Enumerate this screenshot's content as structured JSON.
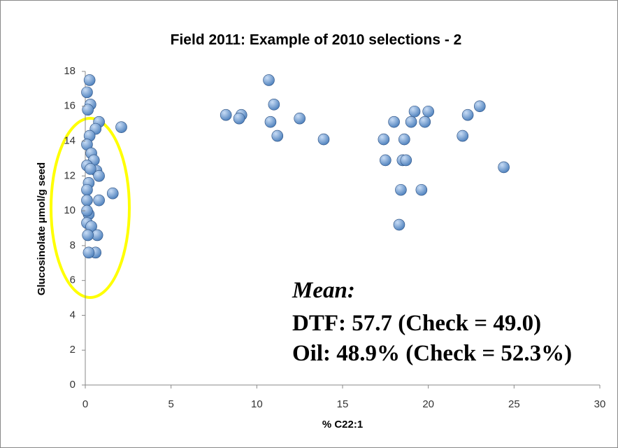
{
  "chart_data": {
    "type": "scatter",
    "title": "Field 2011: Example of 2010 selections - 2",
    "x_label": "% C22:1",
    "y_label": "Glucosinolate µmol/g seed",
    "annotations": [
      "Mean:",
      "DTF: 57.7 (Check = 49.0)",
      "Oil: 48.9% (Check = 52.3%)"
    ],
    "color": "#4a7ebb",
    "xlim": [
      0,
      30
    ],
    "xticks": [
      0,
      5,
      10,
      15,
      20,
      25,
      30
    ],
    "ylim": [
      0,
      18
    ],
    "yticks": [
      0,
      2,
      4,
      6,
      8,
      10,
      12,
      14,
      16,
      18
    ],
    "grid": false,
    "series": [
      {
        "x": [
          10.7,
          8.2,
          9.1,
          8.97,
          11.0,
          10.8,
          11.2,
          12.5,
          13.9,
          18.0,
          19.2,
          19.0,
          20.0,
          19.8,
          22.3,
          23.0,
          22.0,
          24.4,
          17.4,
          18.6,
          17.5,
          18.5,
          18.7,
          18.4,
          19.6,
          18.3,
          0.25,
          0.1,
          0.3,
          0.15,
          0.8,
          0.6,
          2.1,
          0.25,
          0.1,
          0.35,
          0.5,
          0.1,
          0.65,
          0.3,
          0.8,
          0.2,
          0.1,
          1.6,
          0.8,
          0.1,
          0.2,
          0.1,
          0.35,
          0.7,
          0.15,
          0.6,
          0.2,
          0.1
        ],
        "values": [
          17.5,
          15.5,
          15.5,
          15.3,
          16.1,
          15.1,
          14.3,
          15.3,
          14.1,
          15.1,
          15.7,
          15.1,
          15.7,
          15.1,
          15.5,
          16.0,
          14.3,
          12.5,
          14.1,
          14.1,
          12.9,
          12.9,
          12.9,
          11.2,
          11.2,
          9.2,
          17.5,
          16.8,
          16.1,
          15.8,
          15.1,
          14.7,
          14.8,
          14.3,
          13.8,
          13.3,
          12.9,
          12.6,
          12.3,
          12.4,
          12.0,
          11.6,
          11.2,
          11.0,
          10.6,
          10.6,
          9.8,
          9.3,
          9.1,
          8.6,
          8.6,
          7.6,
          7.6,
          10.0
        ]
      }
    ]
  }
}
